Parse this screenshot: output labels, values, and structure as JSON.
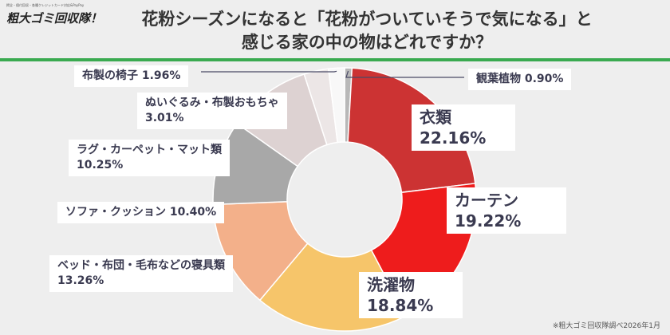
{
  "logo": {
    "tagline": "掲全・個付回収・各種クレジットカード対応&PayPay",
    "name": "粗大ゴミ回収隊！"
  },
  "title": {
    "line1": "花粉シーズンになると「花粉がついていそうで気になる」と",
    "line2": "感じる家の中の物はどれですか？"
  },
  "source_note": "※粗大ゴミ回収隊調べ2026年1月",
  "chart_data": {
    "type": "pie",
    "donut": true,
    "title": "",
    "slices": [
      {
        "label": "観葉植物",
        "value": 0.9,
        "value_text": "0.90%",
        "color": "#b8b8b8"
      },
      {
        "label": "衣類",
        "value": 22.16,
        "value_text": "22.16%",
        "color": "#cc3333"
      },
      {
        "label": "カーテン",
        "value": 19.22,
        "value_text": "19.22%",
        "color": "#ee1c1c"
      },
      {
        "label": "洗濯物",
        "value": 18.84,
        "value_text": "18.84%",
        "color": "#f6c56a"
      },
      {
        "label": "ベッド・布団・毛布などの寝具類",
        "value": 13.26,
        "value_text": "13.26%",
        "color": "#f3b08a"
      },
      {
        "label": "ソファ・クッション",
        "value": 10.4,
        "value_text": "10.40%",
        "color": "#a8a8a8"
      },
      {
        "label": "ラグ・カーペット・マット類",
        "value": 10.25,
        "value_text": "10.25%",
        "color": "#ddd2d2"
      },
      {
        "label": "ぬいぐるみ・布製おもちゃ",
        "value": 3.01,
        "value_text": "3.01%",
        "color": "#ece6e6"
      },
      {
        "label": "布製の椅子",
        "value": 1.96,
        "value_text": "1.96%",
        "color": "#f8f8f8"
      }
    ]
  }
}
